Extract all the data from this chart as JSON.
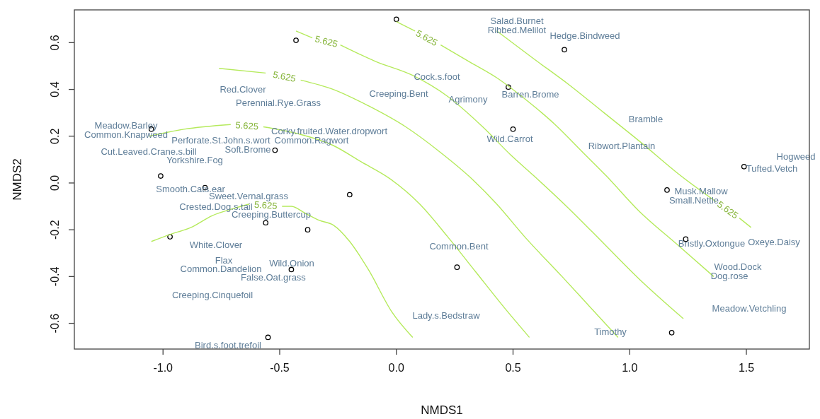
{
  "chart_data": {
    "type": "scatter",
    "xlabel": "NMDS1",
    "ylabel": "NMDS2",
    "xlim": [
      -1.38,
      1.77
    ],
    "ylim": [
      -0.71,
      0.74
    ],
    "xticks": [
      {
        "value": -1,
        "label": "-1.0"
      },
      {
        "value": -0.5,
        "label": "-0.5"
      },
      {
        "value": 0,
        "label": "0.0"
      },
      {
        "value": 0.5,
        "label": "0.5"
      },
      {
        "value": 1,
        "label": "1.0"
      },
      {
        "value": 1.5,
        "label": "1.5"
      }
    ],
    "yticks": [
      {
        "value": -0.6,
        "label": "-0.6"
      },
      {
        "value": -0.4,
        "label": "-0.4"
      },
      {
        "value": -0.2,
        "label": "-0.2"
      },
      {
        "value": 0,
        "label": "0.0"
      },
      {
        "value": 0.2,
        "label": "0.2"
      },
      {
        "value": 0.4,
        "label": "0.4"
      },
      {
        "value": 0.6,
        "label": "0.6"
      }
    ],
    "grid": false,
    "legend": false,
    "series": [
      {
        "type": "scatter",
        "marker": "circle",
        "color": "#000000",
        "x": [
          0.0,
          -0.43,
          0.72,
          0.48,
          0.5,
          -0.52,
          -1.05,
          -1.01,
          -0.82,
          -0.2,
          -0.56,
          -0.38,
          -0.97,
          -0.45,
          0.26,
          -0.55,
          1.18,
          1.49,
          1.16,
          1.24
        ],
        "values": [
          0.7,
          0.61,
          0.57,
          0.41,
          0.23,
          0.14,
          0.23,
          0.03,
          -0.02,
          -0.05,
          -0.17,
          -0.2,
          -0.23,
          -0.37,
          -0.36,
          -0.66,
          -0.64,
          0.07,
          -0.03,
          -0.24
        ]
      },
      {
        "type": "line",
        "marker": "none",
        "name": "5.625",
        "color": "#b5ea5c",
        "x": [
          -1.05,
          -0.97,
          -0.88,
          -0.79,
          -0.7,
          -0.63,
          -0.56,
          -0.49,
          -0.45,
          -0.39,
          -0.33,
          -0.27,
          -0.2,
          -0.12,
          -0.02,
          0.07
        ],
        "values": [
          -0.25,
          -0.22,
          -0.19,
          -0.14,
          -0.11,
          -0.09,
          null,
          -0.1,
          -0.1,
          -0.13,
          -0.16,
          -0.18,
          -0.25,
          -0.37,
          -0.55,
          -0.66
        ]
      },
      {
        "type": "line",
        "marker": "none",
        "name": "5.625",
        "color": "#b5ea5c",
        "x": [
          -1.06,
          -0.91,
          -0.71,
          -0.64,
          -0.57,
          -0.42,
          -0.27,
          -0.15,
          -0.03,
          0.1,
          0.22,
          0.34,
          0.46,
          0.57
        ],
        "values": [
          0.2,
          0.23,
          0.25,
          null,
          0.24,
          0.21,
          0.16,
          0.09,
          0.02,
          -0.09,
          -0.23,
          -0.38,
          -0.53,
          -0.66
        ]
      },
      {
        "type": "line",
        "marker": "none",
        "name": "5.625",
        "color": "#b5ea5c",
        "x": [
          -0.76,
          -0.56,
          -0.48,
          -0.41,
          -0.27,
          -0.12,
          0.04,
          0.19,
          0.31,
          0.43,
          0.55,
          0.71,
          0.83,
          0.95
        ],
        "values": [
          0.49,
          0.47,
          null,
          0.44,
          0.4,
          0.33,
          0.24,
          0.13,
          0.03,
          -0.09,
          -0.23,
          -0.4,
          -0.53,
          -0.66
        ]
      },
      {
        "type": "line",
        "marker": "none",
        "name": "5.625",
        "color": "#b5ea5c",
        "x": [
          -0.43,
          -0.36,
          -0.3,
          -0.24,
          -0.09,
          0.07,
          0.22,
          0.37,
          0.49,
          0.59,
          0.74,
          0.89,
          1.04,
          1.23
        ],
        "values": [
          0.65,
          0.62,
          null,
          0.59,
          0.52,
          0.46,
          0.37,
          0.24,
          0.12,
          0.03,
          -0.11,
          -0.26,
          -0.41,
          -0.58
        ]
      },
      {
        "type": "line",
        "marker": "none",
        "name": "5.625",
        "color": "#b5ea5c",
        "x": [
          0.0,
          0.08,
          0.13,
          0.19,
          0.31,
          0.43,
          0.55,
          0.68,
          0.8,
          0.9,
          1.04,
          1.2,
          1.36
        ],
        "values": [
          0.69,
          0.65,
          null,
          0.59,
          0.52,
          0.45,
          0.36,
          0.25,
          0.13,
          0.03,
          -0.12,
          -0.26,
          -0.4
        ]
      },
      {
        "type": "line",
        "marker": "none",
        "name": "5.625",
        "color": "#b5ea5c",
        "x": [
          0.43,
          0.59,
          0.74,
          0.89,
          1.04,
          1.22,
          1.37,
          1.42,
          1.47,
          1.52
        ],
        "values": [
          0.65,
          0.53,
          0.42,
          0.3,
          0.18,
          0.03,
          -0.08,
          null,
          -0.15,
          -0.19
        ]
      }
    ],
    "annotations": [
      "Meadow.Barley",
      "Common.Knapweed",
      "Red.Clover",
      "Perennial.Rye.Grass",
      "Corky.fruited.Water.dropwort",
      "Perforate.St.John.s.wort",
      "Soft.Brome",
      "Common.Ragwort",
      "Cut.Leaved.Crane.s.bill",
      "Yorkshire.Fog",
      "Smooth.Cats.ear",
      "Sweet.Vernal.grass",
      "Crested.Dog.s.tail",
      "Creeping.Buttercup",
      "White.Clover",
      "Flax",
      "Common.Dandelion",
      "Wild.Onion",
      "False.Oat.grass",
      "Creeping.Cinquefoil",
      "Bird.s.foot.trefoil",
      "Cock.s.foot",
      "Creeping.Bent",
      "Agrimony",
      "Barren.Brome",
      "Wild.Carrot",
      "Salad.Burnet",
      "Ribbed.Melilot",
      "Hedge.Bindweed",
      "Bramble",
      "Ribwort.Plantain",
      "Hogweed",
      "Tufted.Vetch",
      "Musk.Mallow",
      "Small.Nettle",
      "Bristly.Oxtongue",
      "Oxeye.Daisy",
      "Wood.Dock",
      "Dog.rose",
      "Meadow.Vetchling",
      "Common.Bent",
      "Lady.s.Bedstraw",
      "Timothy"
    ]
  }
}
